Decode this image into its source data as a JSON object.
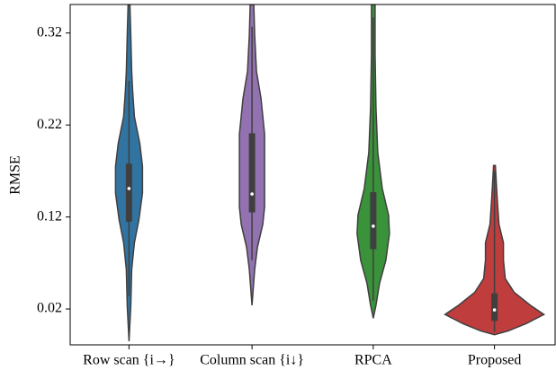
{
  "chart_data": {
    "type": "violin",
    "y_label": "RMSE",
    "categories": [
      "Row scan {i→}",
      "Column scan {i↓}",
      "RPCA",
      "Proposed"
    ],
    "ylim": [
      -0.019,
      0.351
    ],
    "yticks": [
      0.02,
      0.12,
      0.22,
      0.32
    ],
    "series": [
      {
        "name": "Row scan {i→}",
        "color": "#3274a1",
        "y": [
          0.351,
          0.317,
          0.278,
          0.258,
          0.229,
          0.2,
          0.175,
          0.146,
          0.117,
          0.092,
          0.063,
          0.024,
          -0.015
        ],
        "density": [
          1,
          2,
          3,
          4,
          6,
          12,
          15,
          15,
          11,
          6,
          3,
          2,
          0
        ],
        "median": 0.151,
        "q1": 0.115,
        "q3": 0.178,
        "whisker_low": 0.034,
        "whisker_high": 0.268
      },
      {
        "name": "Column scan {i↓}",
        "color": "#9372b2",
        "y": [
          0.351,
          0.317,
          0.278,
          0.249,
          0.21,
          0.161,
          0.131,
          0.112,
          0.087,
          0.063,
          0.024
        ],
        "density": [
          2,
          3,
          5,
          10,
          14,
          14,
          14,
          12,
          6,
          3,
          0
        ],
        "median": 0.145,
        "q1": 0.125,
        "q3": 0.211,
        "whisker_low": 0.073,
        "whisker_high": 0.327
      },
      {
        "name": "RPCA",
        "color": "#3a923a",
        "y": [
          0.351,
          0.298,
          0.239,
          0.19,
          0.151,
          0.122,
          0.102,
          0.073,
          0.048,
          0.024,
          0.01
        ],
        "density": [
          2,
          2,
          3,
          5,
          10,
          17,
          18,
          14,
          7,
          3,
          0
        ],
        "median": 0.11,
        "q1": 0.085,
        "q3": 0.147,
        "whisker_low": 0.029,
        "whisker_high": 0.337
      },
      {
        "name": "Proposed",
        "color": "#c03d3e",
        "y": [
          0.176,
          0.141,
          0.112,
          0.092,
          0.073,
          0.053,
          0.038,
          0.024,
          0.014,
          0.004,
          -0.004,
          -0.008
        ],
        "density": [
          1,
          3,
          5,
          10,
          10,
          12,
          22,
          40,
          55,
          35,
          15,
          0
        ],
        "median": 0.019,
        "q1": 0.007,
        "q3": 0.037,
        "whisker_low": -0.005,
        "whisker_high": 0.17
      }
    ]
  }
}
